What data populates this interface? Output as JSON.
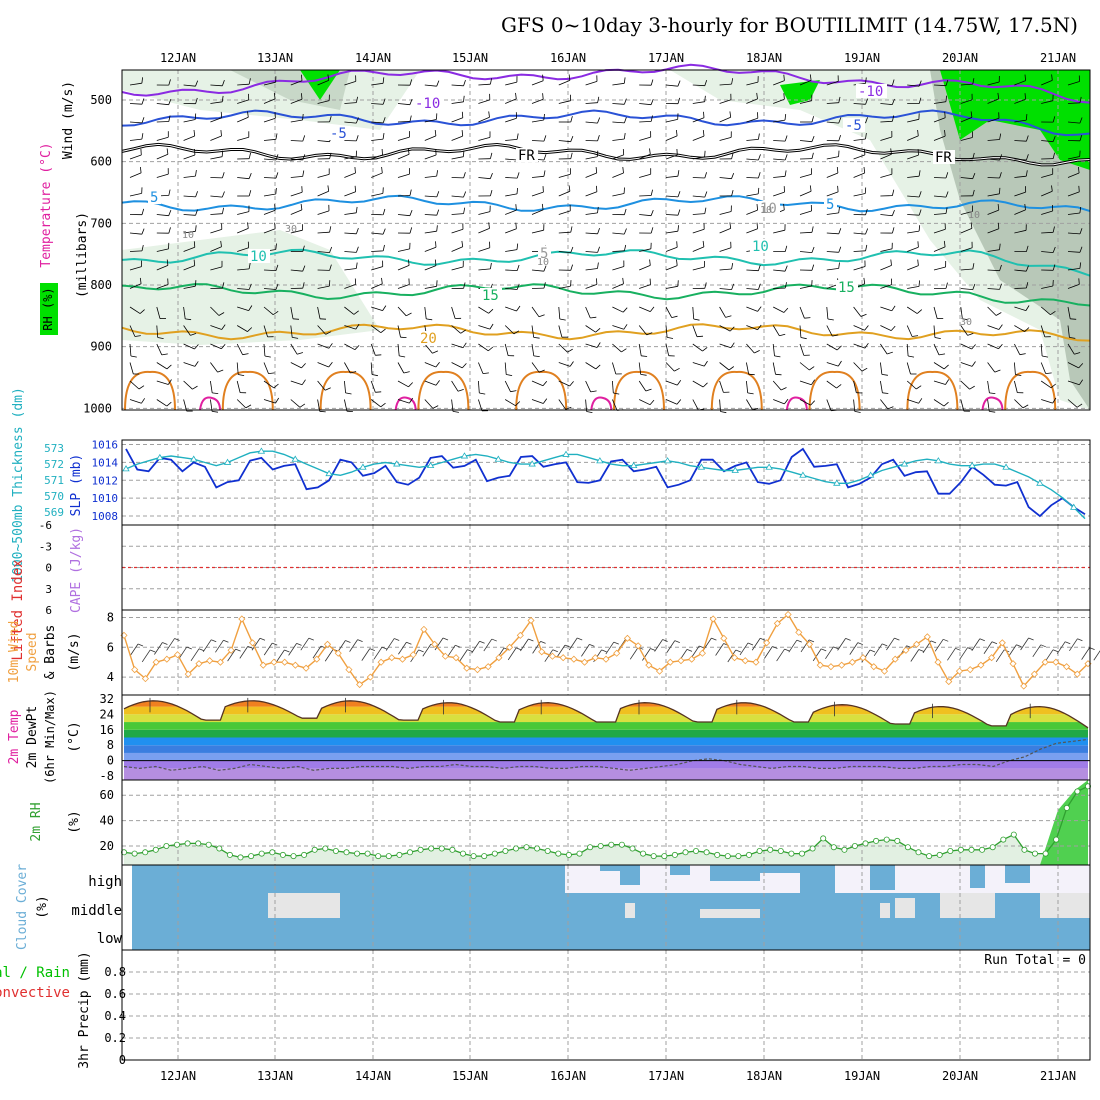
{
  "title": "GFS 0~10day 3-hourly for BOUTILIMIT (14.75W, 17.5N)",
  "colors": {
    "panel_border": "#000000",
    "grid": "#a0a0a0",
    "temp_purple": "#8a2be2",
    "temp_blue": "#2a52d6",
    "temp_cyan": "#1e90e0",
    "temp_teal": "#20c0b0",
    "temp_green": "#18b060",
    "temp_orange": "#e0a020",
    "temp_dark_orange": "#e08020",
    "temp_magenta": "#e020a0",
    "rh_green": "#00e000",
    "rh_light": "#e6f2e6",
    "rh_grey": "#a0b0a0",
    "slp_blue": "#1030d0",
    "thick_cyan": "#20b0c0",
    "wind_orange": "#f0a040",
    "cloud_blue": "#6baed6",
    "cloud_bg": "#f4f2fa",
    "cloud_grey": "#e6e6e6",
    "rh2m_green": "#30a030",
    "li_red": "#e03030",
    "cape_purple": "#b070e0",
    "precip_green": "#00c000"
  },
  "chart_data": [
    {
      "panel": "upper-air",
      "type": "line",
      "x_dates": [
        "12JAN",
        "13JAN",
        "14JAN",
        "15JAN",
        "16JAN",
        "17JAN",
        "18JAN",
        "19JAN",
        "20JAN",
        "21JAN"
      ],
      "ylabel_wind": "Wind (m/s)",
      "ylabel_temp": "Temperature (°C)",
      "ylabel_rh": "RH (%)",
      "ylabel_axis": "(millibars)",
      "y_ticks": [
        "500",
        "600",
        "700",
        "800",
        "900",
        "1000"
      ],
      "isotherms": [
        {
          "label": "-10",
          "level": 487
        },
        {
          "label": "-5",
          "level": 530
        },
        {
          "label": "FR",
          "level": 585
        },
        {
          "label": "5",
          "level": 668
        },
        {
          "label": "10",
          "level": 755
        },
        {
          "label": "15",
          "level": 810
        },
        {
          "label": "20",
          "level": 875
        }
      ],
      "rh_labels": [
        "10",
        "30",
        "10",
        "10",
        "30",
        "10"
      ],
      "contour_labels": [
        "-10",
        "-5",
        "FR",
        "5",
        "10",
        "15",
        "20",
        "-10",
        "-5",
        "FR",
        "5",
        "10",
        "15",
        "10",
        "5"
      ]
    },
    {
      "panel": "slp-thickness",
      "type": "line",
      "ylabel_left": "1000~500mb Thickness (dm)",
      "ylabel_right": "SLP (mb)",
      "left_ticks": [
        "573",
        "572",
        "571",
        "570",
        "569"
      ],
      "right_ticks": [
        "1016",
        "1014",
        "1012",
        "1010",
        "1008"
      ],
      "slp_range": [
        1007,
        1016.5
      ],
      "slp": [
        1015.5,
        1013.2,
        1013.0,
        1014.5,
        1014.3,
        1013.0,
        1014.0,
        1013.5,
        1011.2,
        1011.8,
        1012.0,
        1014.2,
        1014.5,
        1013.2,
        1013.6,
        1013.8,
        1011.0,
        1011.2,
        1012.0,
        1014.3,
        1014.0,
        1012.5,
        1012.8,
        1013.6,
        1011.8,
        1011.5,
        1012.3,
        1014.5,
        1014.7,
        1013.4,
        1013.6,
        1014.3,
        1011.9,
        1012.3,
        1012.5,
        1014.6,
        1014.7,
        1013.5,
        1013.8,
        1014.0,
        1011.8,
        1011.7,
        1012.0,
        1014.1,
        1014.3,
        1013.0,
        1013.2,
        1013.5,
        1011.2,
        1011.5,
        1012.0,
        1014.3,
        1014.3,
        1013.0,
        1013.6,
        1014.0,
        1011.8,
        1011.6,
        1012.0,
        1014.6,
        1015.5,
        1013.5,
        1013.6,
        1013.8,
        1011.2,
        1011.6,
        1012.3,
        1013.8,
        1014.3,
        1012.5,
        1012.9,
        1013.0,
        1010.5,
        1010.5,
        1011.8,
        1013.5,
        1012.6,
        1011.5,
        1011.4,
        1011.8,
        1009.0,
        1008.0,
        1009.2,
        1010.0,
        1009.0,
        1008.2
      ],
      "thickness_range": [
        568.2,
        573.5
      ],
      "thickness": [
        571.7,
        572.0,
        572.2,
        572.4,
        572.5,
        572.4,
        572.3,
        572.1,
        571.9,
        572.1,
        572.4,
        572.7,
        572.8,
        572.8,
        572.6,
        572.3,
        572.0,
        571.7,
        571.4,
        571.3,
        571.5,
        571.8,
        572.0,
        572.1,
        572.0,
        571.9,
        571.8,
        571.9,
        572.1,
        572.3,
        572.5,
        572.6,
        572.5,
        572.3,
        572.1,
        572.0,
        572.0,
        572.2,
        572.4,
        572.6,
        572.6,
        572.4,
        572.2,
        572.0,
        571.9,
        571.9,
        572.0,
        572.1,
        572.2,
        572.1,
        571.9,
        571.8,
        571.7,
        571.6,
        571.6,
        571.7,
        571.8,
        571.8,
        571.7,
        571.5,
        571.3,
        571.1,
        570.9,
        570.8,
        570.8,
        571.0,
        571.3,
        571.6,
        571.8,
        572.0,
        572.2,
        572.3,
        572.2,
        572.0,
        571.9,
        571.9,
        572.0,
        572.0,
        571.8,
        571.5,
        571.2,
        570.8,
        570.4,
        569.9,
        569.3,
        568.6
      ]
    },
    {
      "panel": "stability",
      "type": "line",
      "ylabel_left": "Lifted Index",
      "ylabel_right": "CAPE (J/kg)",
      "y_ticks": [
        "-6",
        "-3",
        "0",
        "3",
        "6"
      ],
      "lifted_index": 0,
      "cape": 0
    },
    {
      "panel": "10m-wind",
      "type": "line",
      "ylabel": "10m Wind Speed & Barbs",
      "unit": "(m/s)",
      "y_ticks": [
        "4",
        "6",
        "8"
      ],
      "y_range": [
        2.8,
        8.5
      ],
      "values": [
        6.8,
        4.5,
        3.9,
        5.0,
        5.2,
        5.5,
        4.2,
        4.9,
        5.1,
        5.0,
        5.8,
        7.9,
        6.3,
        4.8,
        5.0,
        5.0,
        4.8,
        4.6,
        5.2,
        6.2,
        5.6,
        4.5,
        3.5,
        4.0,
        5.0,
        5.3,
        5.2,
        5.5,
        7.2,
        6.2,
        5.4,
        5.3,
        4.6,
        4.5,
        4.7,
        5.3,
        6.0,
        6.8,
        7.8,
        5.7,
        5.4,
        5.3,
        5.2,
        5.0,
        5.3,
        5.2,
        5.6,
        6.6,
        6.1,
        4.8,
        4.4,
        5.0,
        5.1,
        5.2,
        5.6,
        7.9,
        6.6,
        5.3,
        5.1,
        5.0,
        6.3,
        7.6,
        8.2,
        7.0,
        6.2,
        4.8,
        4.7,
        4.8,
        5.0,
        5.3,
        4.7,
        4.4,
        5.2,
        5.8,
        6.2,
        6.7,
        5.0,
        3.7,
        4.4,
        4.5,
        4.8,
        5.3,
        6.3,
        4.9,
        3.4,
        4.2,
        5.0,
        5.0,
        4.7,
        4.2,
        4.9
      ]
    },
    {
      "panel": "2m-temp",
      "type": "area",
      "ylabel": "2m Temp 2m DewPt (6hr Min/Max)",
      "unit": "(°C)",
      "y_ticks": [
        "32",
        "24",
        "16",
        "8",
        "0",
        "-8"
      ],
      "y_range": [
        -10,
        34
      ],
      "temp_max_days": [
        31,
        31,
        31,
        30,
        30,
        30,
        30,
        29,
        28,
        28
      ],
      "temp_min_days": [
        21,
        22,
        21,
        20,
        20,
        20,
        20,
        19,
        18,
        17
      ],
      "dewpoint": [
        -3,
        -4,
        -3,
        -5,
        -4,
        -3,
        -5,
        -4,
        -2,
        -3,
        -4,
        -3,
        -5,
        -4,
        -4,
        -3,
        -3,
        -3,
        -4,
        -3,
        -3,
        -2,
        -3,
        -3,
        -4,
        -3,
        -3,
        -4,
        -4,
        -3,
        -3,
        -4,
        -5,
        -4,
        -3,
        -2,
        0,
        1,
        0,
        -2,
        -3,
        -4,
        -3,
        -3,
        -4,
        -4,
        -3,
        -3,
        -3,
        -4,
        -4,
        -3,
        -3,
        -2,
        -2,
        -3,
        0,
        2,
        6,
        9,
        10,
        11
      ]
    },
    {
      "panel": "2m-rh",
      "type": "area",
      "ylabel": "2m RH",
      "unit": "(%)",
      "y_ticks": [
        "20",
        "40",
        "60"
      ],
      "y_range": [
        5,
        72
      ],
      "values": [
        15,
        14,
        15,
        17,
        20,
        21,
        22,
        22,
        21,
        18,
        13,
        11,
        12,
        14,
        15,
        13,
        12,
        13,
        17,
        18,
        16,
        15,
        14,
        14,
        12,
        12,
        13,
        15,
        17,
        18,
        18,
        17,
        14,
        12,
        12,
        14,
        16,
        18,
        19,
        18,
        16,
        14,
        13,
        14,
        19,
        20,
        21,
        21,
        18,
        14,
        12,
        12,
        13,
        15,
        16,
        15,
        13,
        12,
        12,
        13,
        16,
        17,
        16,
        14,
        14,
        18,
        26,
        19,
        17,
        20,
        22,
        24,
        25,
        24,
        19,
        15,
        12,
        13,
        16,
        17,
        17,
        17,
        19,
        25,
        29,
        17,
        14,
        14,
        25,
        50,
        63,
        67
      ]
    },
    {
      "panel": "cloud-cover",
      "type": "heatmap",
      "ylabel": "Cloud Cover",
      "unit": "(%)",
      "row_labels": [
        "high",
        "middle",
        "low"
      ]
    },
    {
      "panel": "precip",
      "type": "bar",
      "ylabel": "3hr Precip (mm)",
      "legend_total": "Total / Rain",
      "legend_convective": "Convective",
      "y_ticks": [
        "0",
        "0.2",
        "0.4",
        "0.6",
        "0.8"
      ],
      "run_total": "Run Total = 0",
      "values": [
        0
      ]
    }
  ]
}
